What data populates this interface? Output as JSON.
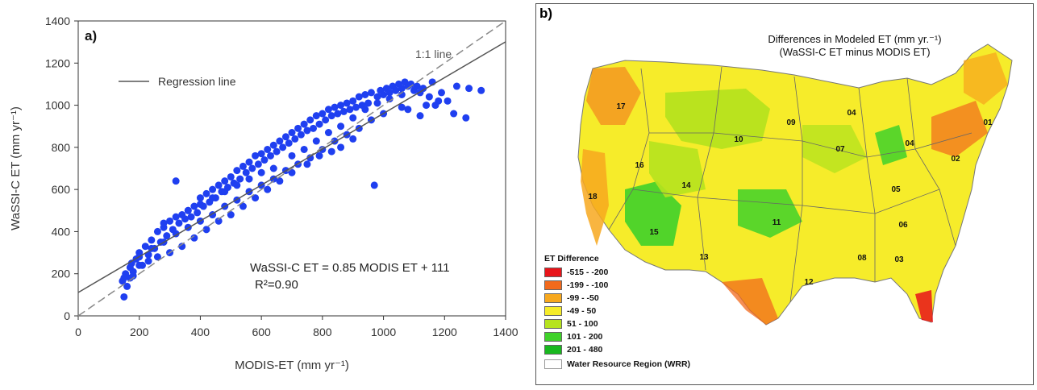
{
  "chart_data": [
    {
      "type": "scatter",
      "panel_label": "a)",
      "xlabel": "MODIS-ET (mm yr⁻¹)",
      "ylabel": "WaSSI-C ET (mm yr⁻¹)",
      "xlim": [
        0,
        1400
      ],
      "ylim": [
        0,
        1400
      ],
      "xticks": [
        0,
        200,
        400,
        600,
        800,
        1000,
        1200,
        1400
      ],
      "yticks": [
        0,
        200,
        400,
        600,
        800,
        1000,
        1200,
        1400
      ],
      "grid": false,
      "legend": [
        {
          "name": "Regression line",
          "style": "solid"
        }
      ],
      "annotations": {
        "one_to_one": "1:1 line",
        "equation": "WaSSI-C ET = 0.85 MODIS ET + 111",
        "r2": "R²=0.90"
      },
      "regression": {
        "slope": 0.85,
        "intercept": 111
      },
      "points_color": "#1f3ff0",
      "points": [
        [
          150,
          90
        ],
        [
          160,
          140
        ],
        [
          170,
          180
        ],
        [
          180,
          210
        ],
        [
          155,
          200
        ],
        [
          145,
          165
        ],
        [
          175,
          250
        ],
        [
          190,
          270
        ],
        [
          200,
          300
        ],
        [
          210,
          240
        ],
        [
          220,
          330
        ],
        [
          230,
          290
        ],
        [
          240,
          360
        ],
        [
          250,
          320
        ],
        [
          260,
          400
        ],
        [
          270,
          350
        ],
        [
          280,
          420
        ],
        [
          290,
          380
        ],
        [
          300,
          450
        ],
        [
          310,
          410
        ],
        [
          320,
          640
        ],
        [
          330,
          440
        ],
        [
          340,
          480
        ],
        [
          350,
          460
        ],
        [
          360,
          500
        ],
        [
          370,
          470
        ],
        [
          380,
          520
        ],
        [
          390,
          490
        ],
        [
          400,
          560
        ],
        [
          410,
          520
        ],
        [
          420,
          580
        ],
        [
          430,
          540
        ],
        [
          440,
          600
        ],
        [
          450,
          560
        ],
        [
          460,
          620
        ],
        [
          470,
          590
        ],
        [
          480,
          640
        ],
        [
          490,
          610
        ],
        [
          500,
          660
        ],
        [
          510,
          630
        ],
        [
          520,
          690
        ],
        [
          530,
          650
        ],
        [
          540,
          710
        ],
        [
          550,
          680
        ],
        [
          560,
          730
        ],
        [
          570,
          700
        ],
        [
          580,
          760
        ],
        [
          590,
          720
        ],
        [
          600,
          770
        ],
        [
          610,
          740
        ],
        [
          620,
          790
        ],
        [
          630,
          760
        ],
        [
          640,
          810
        ],
        [
          650,
          780
        ],
        [
          660,
          830
        ],
        [
          670,
          800
        ],
        [
          680,
          850
        ],
        [
          690,
          820
        ],
        [
          700,
          870
        ],
        [
          710,
          840
        ],
        [
          720,
          890
        ],
        [
          730,
          860
        ],
        [
          740,
          910
        ],
        [
          750,
          880
        ],
        [
          760,
          930
        ],
        [
          770,
          890
        ],
        [
          780,
          950
        ],
        [
          790,
          910
        ],
        [
          800,
          960
        ],
        [
          810,
          930
        ],
        [
          820,
          980
        ],
        [
          830,
          950
        ],
        [
          840,
          990
        ],
        [
          850,
          960
        ],
        [
          860,
          1000
        ],
        [
          870,
          970
        ],
        [
          880,
          1010
        ],
        [
          890,
          980
        ],
        [
          900,
          1020
        ],
        [
          910,
          990
        ],
        [
          920,
          1040
        ],
        [
          930,
          1000
        ],
        [
          940,
          1050
        ],
        [
          950,
          1010
        ],
        [
          960,
          1060
        ],
        [
          970,
          620
        ],
        [
          980,
          1040
        ],
        [
          990,
          1070
        ],
        [
          1000,
          1050
        ],
        [
          1010,
          1080
        ],
        [
          1020,
          1060
        ],
        [
          1030,
          1090
        ],
        [
          1040,
          1070
        ],
        [
          1050,
          1100
        ],
        [
          1060,
          1080
        ],
        [
          1070,
          1110
        ],
        [
          1080,
          1090
        ],
        [
          1090,
          1100
        ],
        [
          1100,
          1070
        ],
        [
          1110,
          1090
        ],
        [
          1120,
          1060
        ],
        [
          1130,
          1080
        ],
        [
          1150,
          1040
        ],
        [
          1170,
          1000
        ],
        [
          1190,
          1060
        ],
        [
          1210,
          1020
        ],
        [
          1230,
          960
        ],
        [
          1270,
          940
        ],
        [
          1280,
          1080
        ],
        [
          1320,
          1070
        ],
        [
          1120,
          950
        ],
        [
          1180,
          1020
        ],
        [
          1240,
          1090
        ],
        [
          1160,
          1110
        ],
        [
          1140,
          1000
        ],
        [
          1080,
          980
        ],
        [
          1060,
          990
        ],
        [
          1000,
          960
        ],
        [
          960,
          930
        ],
        [
          920,
          890
        ],
        [
          880,
          860
        ],
        [
          840,
          830
        ],
        [
          800,
          790
        ],
        [
          760,
          750
        ],
        [
          720,
          720
        ],
        [
          680,
          690
        ],
        [
          640,
          650
        ],
        [
          600,
          620
        ],
        [
          560,
          590
        ],
        [
          520,
          550
        ],
        [
          480,
          520
        ],
        [
          440,
          480
        ],
        [
          400,
          450
        ],
        [
          360,
          420
        ],
        [
          320,
          390
        ],
        [
          280,
          350
        ],
        [
          240,
          320
        ],
        [
          200,
          280
        ],
        [
          170,
          230
        ],
        [
          150,
          180
        ],
        [
          900,
          840
        ],
        [
          860,
          800
        ],
        [
          830,
          780
        ],
        [
          790,
          760
        ],
        [
          750,
          720
        ],
        [
          700,
          680
        ],
        [
          660,
          640
        ],
        [
          620,
          600
        ],
        [
          580,
          560
        ],
        [
          540,
          520
        ],
        [
          500,
          480
        ],
        [
          460,
          450
        ],
        [
          420,
          410
        ],
        [
          380,
          370
        ],
        [
          340,
          330
        ],
        [
          300,
          300
        ],
        [
          260,
          280
        ],
        [
          230,
          260
        ],
        [
          200,
          240
        ],
        [
          180,
          190
        ],
        [
          640,
          700
        ],
        [
          600,
          680
        ],
        [
          560,
          650
        ],
        [
          520,
          620
        ],
        [
          480,
          590
        ],
        [
          440,
          560
        ],
        [
          400,
          530
        ],
        [
          360,
          500
        ],
        [
          320,
          470
        ],
        [
          280,
          440
        ],
        [
          700,
          760
        ],
        [
          740,
          790
        ],
        [
          780,
          830
        ],
        [
          820,
          870
        ],
        [
          860,
          900
        ],
        [
          900,
          940
        ],
        [
          940,
          980
        ],
        [
          980,
          1010
        ],
        [
          1020,
          1030
        ],
        [
          1060,
          1050
        ]
      ]
    },
    {
      "type": "map",
      "panel_label": "b)",
      "title_line1": "Differences in Modeled ET (mm yr.⁻¹)",
      "title_line2": "(WaSSI-C ET minus MODIS ET)",
      "region_labels": [
        "01",
        "02",
        "03",
        "04",
        "04",
        "05",
        "06",
        "07",
        "08",
        "09",
        "10",
        "11",
        "12",
        "13",
        "14",
        "15",
        "16",
        "17",
        "18"
      ],
      "legend": {
        "title": "ET Difference",
        "classes": [
          {
            "label": "-515 - -200",
            "color": "#e8141a"
          },
          {
            "label": "-199 - -100",
            "color": "#f26a1c"
          },
          {
            "label": "-99 - -50",
            "color": "#f7a81e"
          },
          {
            "label": "-49 - 50",
            "color": "#f6ec2a"
          },
          {
            "label": "51 - 100",
            "color": "#b6e31e"
          },
          {
            "label": "101 - 200",
            "color": "#3fd22a"
          },
          {
            "label": "201 - 480",
            "color": "#19b81f"
          }
        ],
        "boundary_label": "Water Resource Region (WRR)"
      }
    }
  ]
}
